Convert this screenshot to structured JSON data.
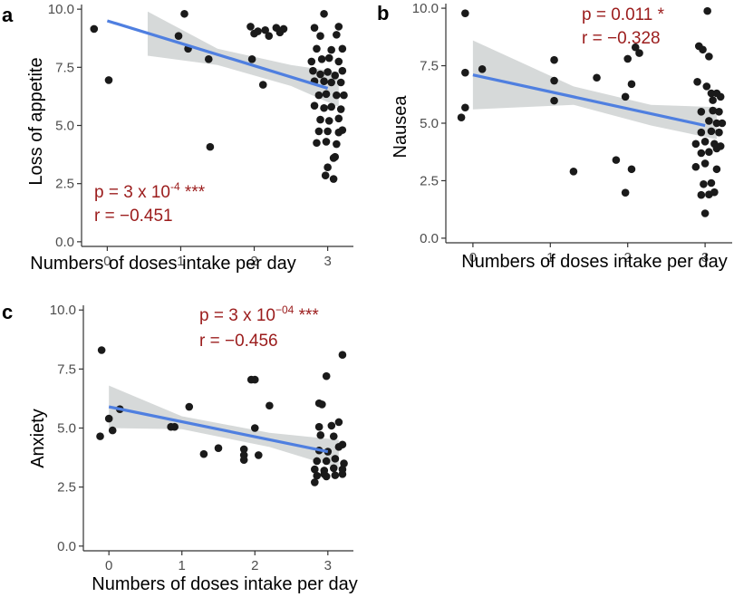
{
  "colors": {
    "point": "#1a1a1a",
    "line": "#4f7fe0",
    "band": "#c8cccc",
    "axis": "#333333",
    "stat": "#9b1c1c"
  },
  "chart_data": [
    {
      "type": "scatter",
      "panel": "a",
      "ylabel": "Loss of appetite",
      "xlabel": "Numbers of doses intake per day",
      "xlim": [
        -0.35,
        3.35
      ],
      "ylim": [
        -0.2,
        10.2
      ],
      "xticks": [
        0,
        1,
        2,
        3
      ],
      "yticks": [
        0.0,
        2.5,
        5.0,
        7.5,
        10.0
      ],
      "ytick_labels": [
        "0.0",
        "2.5",
        "5.0",
        "7.5",
        "10.0"
      ],
      "stat": {
        "p_prefix": "p = 3 x 10",
        "p_exp": "-4",
        "p_suffix": " ***",
        "r": "r = −0.451"
      },
      "fit": {
        "x0": 0,
        "y0": 9.5,
        "x1": 3,
        "y1": 6.6
      },
      "band": [
        {
          "x": 0.55,
          "lo": 8.0,
          "hi": 9.9
        },
        {
          "x": 1.5,
          "lo": 7.6,
          "hi": 8.3
        },
        {
          "x": 2.5,
          "lo": 6.7,
          "hi": 7.6
        },
        {
          "x": 3.15,
          "lo": 5.8,
          "hi": 7.3
        }
      ],
      "points": [
        [
          -0.18,
          9.15
        ],
        [
          0.02,
          6.95
        ],
        [
          1.05,
          9.8
        ],
        [
          0.97,
          8.85
        ],
        [
          1.1,
          8.3
        ],
        [
          1.38,
          7.85
        ],
        [
          1.4,
          4.08
        ],
        [
          1.95,
          9.25
        ],
        [
          2.0,
          8.95
        ],
        [
          2.05,
          9.05
        ],
        [
          2.15,
          9.1
        ],
        [
          2.2,
          8.85
        ],
        [
          2.12,
          6.75
        ],
        [
          1.97,
          7.85
        ],
        [
          2.3,
          9.2
        ],
        [
          2.35,
          9.0
        ],
        [
          2.4,
          9.15
        ],
        [
          2.95,
          9.8
        ],
        [
          2.82,
          9.2
        ],
        [
          3.15,
          9.25
        ],
        [
          2.9,
          8.85
        ],
        [
          3.12,
          8.9
        ],
        [
          2.85,
          8.3
        ],
        [
          3.05,
          8.25
        ],
        [
          3.2,
          8.3
        ],
        [
          2.78,
          7.75
        ],
        [
          2.92,
          7.85
        ],
        [
          3.02,
          7.9
        ],
        [
          3.15,
          7.75
        ],
        [
          2.8,
          7.35
        ],
        [
          2.9,
          7.2
        ],
        [
          3.0,
          7.3
        ],
        [
          3.1,
          7.15
        ],
        [
          3.2,
          7.35
        ],
        [
          2.82,
          6.9
        ],
        [
          2.95,
          6.9
        ],
        [
          3.05,
          6.85
        ],
        [
          3.18,
          6.85
        ],
        [
          2.88,
          6.3
        ],
        [
          2.98,
          6.35
        ],
        [
          3.12,
          6.3
        ],
        [
          3.22,
          6.3
        ],
        [
          2.82,
          5.85
        ],
        [
          2.95,
          5.75
        ],
        [
          3.05,
          5.8
        ],
        [
          3.18,
          5.7
        ],
        [
          2.9,
          5.25
        ],
        [
          3.02,
          5.2
        ],
        [
          3.15,
          5.3
        ],
        [
          2.88,
          4.75
        ],
        [
          3.0,
          4.75
        ],
        [
          3.15,
          4.7
        ],
        [
          3.2,
          4.8
        ],
        [
          2.85,
          4.25
        ],
        [
          2.98,
          4.3
        ],
        [
          3.12,
          4.2
        ],
        [
          3.08,
          3.6
        ],
        [
          3.0,
          3.2
        ],
        [
          3.1,
          3.65
        ],
        [
          2.97,
          2.85
        ],
        [
          3.08,
          2.7
        ]
      ]
    },
    {
      "type": "scatter",
      "panel": "b",
      "ylabel": "Nausea",
      "xlabel": "Numbers of doses intake per day",
      "xlim": [
        -0.35,
        3.35
      ],
      "ylim": [
        -0.2,
        10.2
      ],
      "xticks": [
        0,
        1,
        2,
        3
      ],
      "yticks": [
        0.0,
        2.5,
        5.0,
        7.5,
        10.0
      ],
      "ytick_labels": [
        "0.0",
        "2.5",
        "5.0",
        "7.5",
        "10.0"
      ],
      "stat": {
        "p": "p = 0.011 *",
        "r": "r = −0.328"
      },
      "fit": {
        "x0": 0,
        "y0": 7.1,
        "x1": 3,
        "y1": 4.9
      },
      "band": [
        {
          "x": 0,
          "lo": 5.6,
          "hi": 8.6
        },
        {
          "x": 1.3,
          "lo": 5.8,
          "hi": 6.6
        },
        {
          "x": 2.3,
          "lo": 4.9,
          "hi": 5.8
        },
        {
          "x": 3.15,
          "lo": 4.3,
          "hi": 5.7
        }
      ],
      "points": [
        [
          -0.1,
          9.78
        ],
        [
          -0.1,
          7.2
        ],
        [
          0.12,
          7.35
        ],
        [
          -0.1,
          5.68
        ],
        [
          -0.15,
          5.25
        ],
        [
          1.05,
          7.75
        ],
        [
          1.05,
          6.85
        ],
        [
          1.05,
          5.98
        ],
        [
          1.6,
          6.98
        ],
        [
          1.3,
          2.9
        ],
        [
          1.85,
          3.4
        ],
        [
          2.0,
          7.8
        ],
        [
          2.1,
          8.3
        ],
        [
          2.15,
          8.05
        ],
        [
          2.05,
          6.7
        ],
        [
          1.97,
          6.15
        ],
        [
          2.05,
          3.0
        ],
        [
          1.97,
          1.98
        ],
        [
          2.92,
          8.35
        ],
        [
          3.05,
          7.9
        ],
        [
          2.97,
          8.2
        ],
        [
          3.08,
          6.3
        ],
        [
          2.9,
          6.8
        ],
        [
          3.02,
          6.6
        ],
        [
          3.15,
          6.3
        ],
        [
          3.2,
          6.15
        ],
        [
          3.1,
          6.0
        ],
        [
          2.95,
          5.5
        ],
        [
          3.1,
          5.55
        ],
        [
          3.18,
          5.5
        ],
        [
          3.05,
          5.1
        ],
        [
          3.15,
          5.0
        ],
        [
          3.22,
          5.0
        ],
        [
          2.95,
          4.6
        ],
        [
          3.08,
          4.65
        ],
        [
          3.18,
          4.6
        ],
        [
          2.88,
          4.1
        ],
        [
          3.0,
          4.2
        ],
        [
          3.12,
          4.1
        ],
        [
          3.2,
          4.0
        ],
        [
          2.95,
          3.7
        ],
        [
          3.05,
          3.75
        ],
        [
          3.15,
          3.9
        ],
        [
          2.88,
          3.1
        ],
        [
          3.0,
          3.25
        ],
        [
          3.15,
          3.0
        ],
        [
          2.98,
          2.35
        ],
        [
          3.08,
          2.4
        ],
        [
          2.95,
          1.88
        ],
        [
          3.05,
          1.9
        ],
        [
          3.12,
          2.0
        ],
        [
          3.0,
          1.08
        ],
        [
          3.03,
          9.88
        ]
      ]
    },
    {
      "type": "scatter",
      "panel": "c",
      "ylabel": "Anxiety",
      "xlabel": "Numbers of doses intake per day",
      "xlim": [
        -0.35,
        3.35
      ],
      "ylim": [
        -0.2,
        10.2
      ],
      "xticks": [
        0,
        1,
        2,
        3
      ],
      "yticks": [
        0.0,
        2.5,
        5.0,
        7.5,
        10.0
      ],
      "ytick_labels": [
        "0.0",
        "2.5",
        "5.0",
        "7.5",
        "10.0"
      ],
      "stat": {
        "p_prefix": "p = 3 x 10",
        "p_exp": "−04",
        "p_suffix": " ***",
        "r": "r = −0.456"
      },
      "fit": {
        "x0": 0,
        "y0": 5.9,
        "x1": 3,
        "y1": 4.0
      },
      "band": [
        {
          "x": 0,
          "lo": 5.0,
          "hi": 6.8
        },
        {
          "x": 1.0,
          "lo": 4.95,
          "hi": 5.5
        },
        {
          "x": 2.2,
          "lo": 4.2,
          "hi": 4.8
        },
        {
          "x": 3.15,
          "lo": 3.3,
          "hi": 4.5
        }
      ],
      "points": [
        [
          -0.1,
          8.3
        ],
        [
          0.0,
          5.4
        ],
        [
          0.15,
          5.8
        ],
        [
          0.05,
          4.9
        ],
        [
          -0.12,
          4.65
        ],
        [
          0.85,
          5.05
        ],
        [
          0.9,
          5.05
        ],
        [
          1.1,
          5.9
        ],
        [
          1.3,
          3.9
        ],
        [
          1.5,
          4.15
        ],
        [
          1.95,
          7.05
        ],
        [
          2.0,
          7.05
        ],
        [
          2.2,
          5.95
        ],
        [
          2.0,
          5.0
        ],
        [
          1.85,
          4.1
        ],
        [
          1.85,
          3.85
        ],
        [
          1.85,
          3.65
        ],
        [
          2.05,
          3.85
        ],
        [
          2.98,
          7.2
        ],
        [
          3.2,
          8.1
        ],
        [
          2.88,
          6.05
        ],
        [
          2.92,
          6.0
        ],
        [
          2.88,
          5.05
        ],
        [
          3.05,
          5.1
        ],
        [
          3.15,
          5.25
        ],
        [
          2.9,
          4.7
        ],
        [
          3.08,
          4.65
        ],
        [
          3.2,
          4.3
        ],
        [
          2.88,
          4.05
        ],
        [
          3.0,
          4.0
        ],
        [
          3.15,
          4.2
        ],
        [
          2.85,
          3.6
        ],
        [
          2.98,
          3.6
        ],
        [
          3.1,
          3.7
        ],
        [
          3.22,
          3.5
        ],
        [
          2.82,
          3.25
        ],
        [
          2.95,
          3.2
        ],
        [
          3.08,
          3.3
        ],
        [
          3.2,
          3.25
        ],
        [
          2.85,
          2.98
        ],
        [
          2.98,
          2.95
        ],
        [
          3.1,
          3.0
        ],
        [
          3.2,
          3.05
        ],
        [
          2.82,
          2.7
        ],
        [
          2.95,
          3.05
        ]
      ]
    }
  ]
}
